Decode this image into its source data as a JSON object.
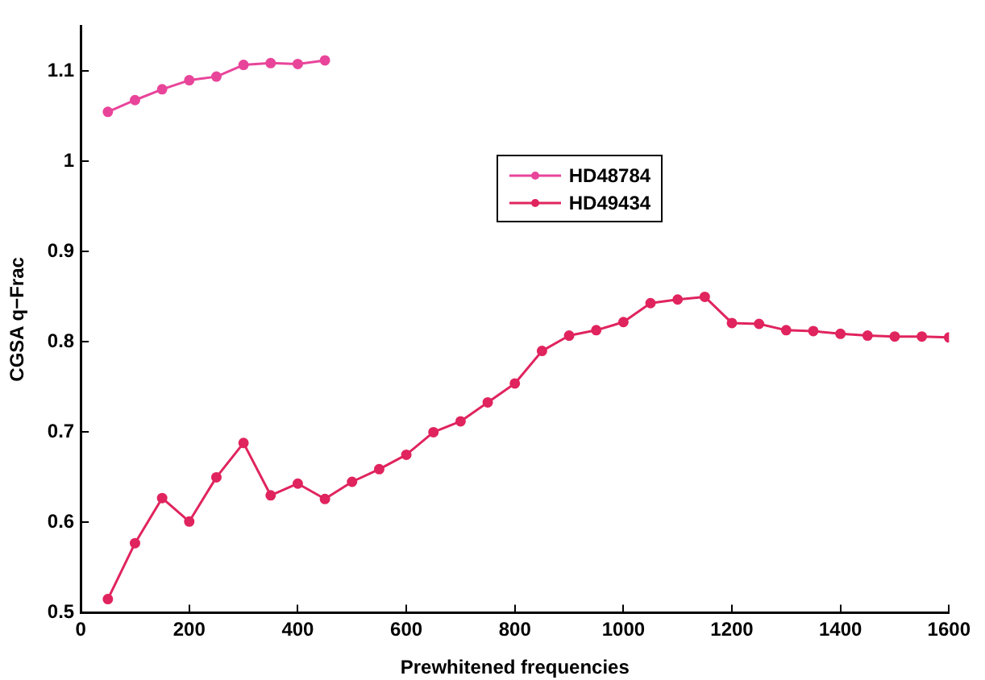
{
  "chart_data": {
    "type": "line",
    "xlabel": "Prewhitened frequencies",
    "ylabel": "CGSA q−Frac",
    "xlim": [
      0,
      1600
    ],
    "xticks": [
      0,
      200,
      400,
      600,
      800,
      1000,
      1200,
      1400,
      1600
    ],
    "ylim": [
      0.5,
      1.15
    ],
    "yticks": [
      0.5,
      0.6,
      0.7,
      0.8,
      0.9,
      1,
      1.1
    ],
    "grid": false,
    "legend": "top",
    "marker": "circle",
    "line_style": "solid",
    "series": [
      {
        "name": "HD48784",
        "color": "#e8459a",
        "x": [
          50,
          100,
          150,
          200,
          250,
          300,
          350,
          400,
          450
        ],
        "values": [
          1.055,
          1.068,
          1.08,
          1.09,
          1.094,
          1.107,
          1.109,
          1.108,
          1.112
        ]
      },
      {
        "name": "HD49434",
        "color": "#e0245e",
        "x": [
          50,
          100,
          150,
          200,
          250,
          300,
          350,
          400,
          450,
          500,
          550,
          600,
          650,
          700,
          750,
          800,
          850,
          900,
          950,
          1000,
          1050,
          1100,
          1150,
          1200,
          1250,
          1300,
          1350,
          1400,
          1450,
          1500,
          1550,
          1600
        ],
        "values": [
          0.515,
          0.577,
          0.627,
          0.601,
          0.65,
          0.688,
          0.63,
          0.643,
          0.626,
          0.645,
          0.659,
          0.675,
          0.7,
          0.712,
          0.733,
          0.754,
          0.79,
          0.807,
          0.813,
          0.822,
          0.843,
          0.847,
          0.85,
          0.821,
          0.82,
          0.813,
          0.812,
          0.809,
          0.807,
          0.806,
          0.806,
          0.805
        ]
      }
    ]
  }
}
